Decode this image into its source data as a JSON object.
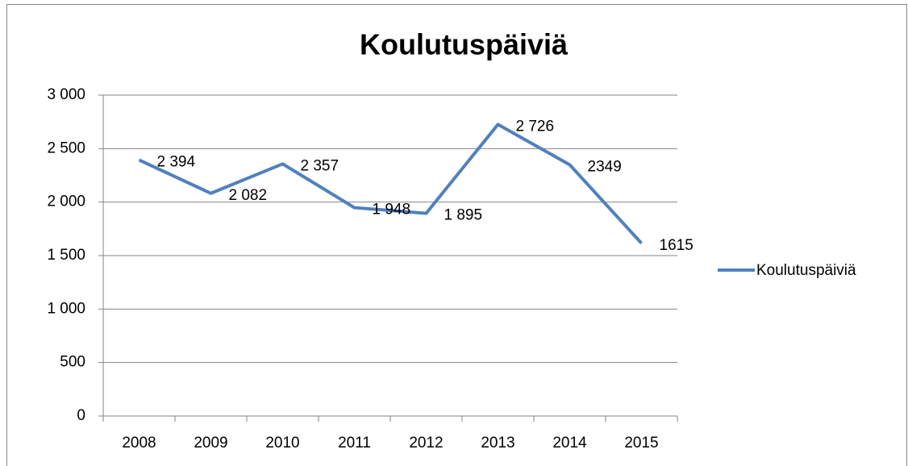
{
  "chart_data": {
    "type": "line",
    "title": "Koulutuspäiviä",
    "categories": [
      "2008",
      "2009",
      "2010",
      "2011",
      "2012",
      "2013",
      "2014",
      "2015"
    ],
    "series": [
      {
        "name": "Koulutuspäiviä",
        "color": "#4f81bd",
        "values": [
          2394,
          2082,
          2357,
          1948,
          1895,
          2726,
          2349,
          1615
        ],
        "value_labels": [
          "2 394",
          "2 082",
          "2 357",
          "1 948",
          "1 895",
          "2 726",
          "2349",
          "1615"
        ]
      }
    ],
    "ylim": [
      0,
      3000
    ],
    "yticks": [
      0,
      500,
      {
        "value": 1000,
        "label": "1 000"
      },
      {
        "value": 1500,
        "label": "1 500"
      },
      {
        "value": 2000,
        "label": "2 000"
      },
      {
        "value": 2500,
        "label": "2 500"
      },
      {
        "value": 3000,
        "label": "3 000"
      }
    ],
    "grid": true,
    "legend": "right"
  }
}
